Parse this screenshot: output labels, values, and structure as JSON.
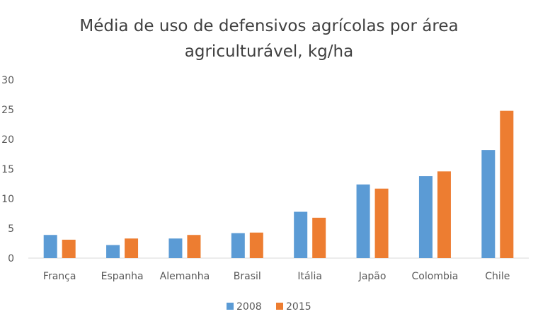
{
  "chart_data": {
    "type": "bar",
    "title_lines": [
      "Média de uso de defensivos agrícolas por área",
      "agriculturável, kg/ha"
    ],
    "title": "Média de uso de defensivos agrícolas por área agriculturável, kg/ha",
    "xlabel": "",
    "ylabel": "",
    "ylim": [
      0,
      30
    ],
    "yticks": [
      0,
      5,
      10,
      15,
      20,
      25,
      30
    ],
    "grid": false,
    "legend_position": "bottom",
    "categories": [
      "França",
      "Espanha",
      "Alemanha",
      "Brasil",
      "Itália",
      "Japão",
      "Colombia",
      "Chile"
    ],
    "series": [
      {
        "name": "2008",
        "color": "#5b9bd5",
        "values": [
          3.9,
          2.2,
          3.3,
          4.2,
          7.8,
          12.4,
          13.8,
          18.2
        ]
      },
      {
        "name": "2015",
        "color": "#ed7d31",
        "values": [
          3.1,
          3.3,
          3.9,
          4.3,
          6.8,
          11.7,
          14.6,
          24.8
        ]
      }
    ]
  }
}
